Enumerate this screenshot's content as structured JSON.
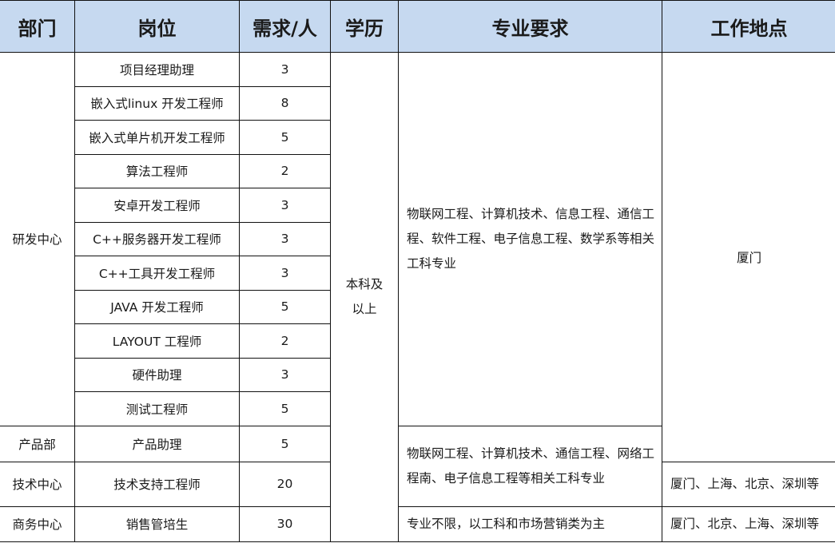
{
  "header": {
    "dept": "部门",
    "position": "岗位",
    "demand": "需求/人",
    "education": "学历",
    "major": "专业要求",
    "location": "工作地点"
  },
  "rows": [
    {
      "position": "项目经理助理",
      "demand": "3"
    },
    {
      "position": "嵌入式linux 开发工程师",
      "demand": "8"
    },
    {
      "position": "嵌入式单片机开发工程师",
      "demand": "5"
    },
    {
      "position": "算法工程师",
      "demand": "2"
    },
    {
      "position": "安卓开发工程师",
      "demand": "3"
    },
    {
      "position": "C++服务器开发工程师",
      "demand": "3"
    },
    {
      "position": "C++工具开发工程师",
      "demand": "3"
    },
    {
      "position": "JAVA 开发工程师",
      "demand": "5"
    },
    {
      "position": "LAYOUT 工程师",
      "demand": "2"
    },
    {
      "position": "硬件助理",
      "demand": "3"
    },
    {
      "position": "测试工程师",
      "demand": "5"
    },
    {
      "position": "产品助理",
      "demand": "5"
    },
    {
      "position": "技术支持工程师",
      "demand": "20"
    },
    {
      "position": "销售管培生",
      "demand": "30"
    }
  ],
  "depts": [
    "研发中心",
    "产品部",
    "技术中心",
    "商务中心"
  ],
  "education": "本科及以上",
  "majors": [
    "物联网工程、计算机技术、信息工程、通信工程、软件工程、电子信息工程、数学系等相关工科专业",
    "物联网工程、计算机技术、通信工程、网络工程南、电子信息工程等相关工科专业",
    "专业不限，以工科和市场营销类为主"
  ],
  "locations": [
    "厦门",
    "厦门、上海、北京、深圳等",
    "厦门、北京、上海、深圳等"
  ]
}
